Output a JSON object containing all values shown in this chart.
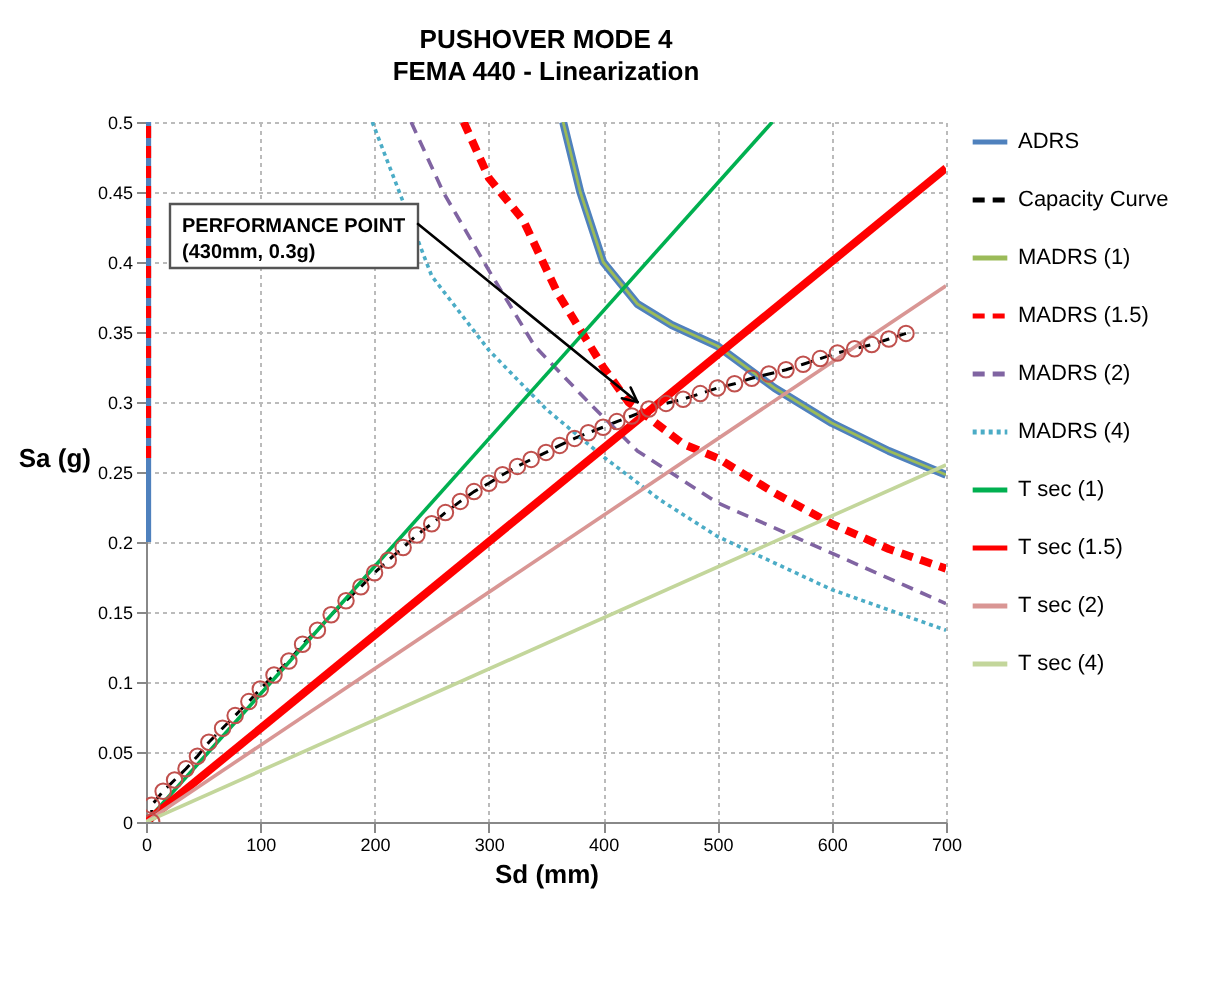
{
  "chart_data": {
    "type": "line",
    "title": "PUSHOVER MODE 4",
    "subtitle": "FEMA 440 - Linearization",
    "xlabel": "Sd (mm)",
    "ylabel": "Sa (g)",
    "xlim": [
      0,
      700
    ],
    "xticks": [
      0,
      100,
      200,
      300,
      400,
      500,
      600,
      700
    ],
    "ylim": [
      0,
      0.5
    ],
    "yticks": [
      0,
      0.05,
      0.1,
      0.15,
      0.2,
      0.25,
      0.3,
      0.35,
      0.4,
      0.45,
      0.5
    ],
    "grid": true,
    "legend": "right",
    "annotations": [
      {
        "text": "PERFORMANCE POINT\n(430mm, 0.3g)",
        "x": 430,
        "y": 0.3
      }
    ],
    "series": [
      {
        "name": "ADRS",
        "color": "#4f81bd",
        "x": [
          1,
          1,
          200,
          365,
          380,
          400,
          430,
          460,
          500,
          550,
          600,
          650,
          700
        ],
        "values": [
          0.2,
          0.5,
          null,
          0.5,
          0.45,
          0.4,
          0.37,
          0.355,
          0.34,
          0.31,
          0.285,
          0.265,
          0.248
        ]
      },
      {
        "name": "Capacity Curve",
        "color": "#000000",
        "marker": "circle",
        "line_style": "dashed",
        "x": [
          5,
          5,
          15,
          25,
          35,
          45,
          55,
          67,
          78,
          90,
          100,
          112,
          125,
          137,
          150,
          162,
          175,
          188,
          200,
          212,
          225,
          237,
          250,
          262,
          275,
          287,
          300,
          312,
          325,
          337,
          350,
          362,
          375,
          387,
          400,
          412,
          425,
          440,
          455,
          470,
          485,
          500,
          515,
          530,
          545,
          560,
          575,
          590,
          605,
          620,
          635,
          650,
          665
        ],
        "values": [
          0,
          0.012,
          0.022,
          0.03,
          0.038,
          0.047,
          0.057,
          0.067,
          0.076,
          0.086,
          0.095,
          0.105,
          0.115,
          0.127,
          0.137,
          0.148,
          0.158,
          0.168,
          0.178,
          0.187,
          0.196,
          0.205,
          0.213,
          0.221,
          0.229,
          0.236,
          0.242,
          0.248,
          0.254,
          0.259,
          0.264,
          0.269,
          0.274,
          0.278,
          0.282,
          0.286,
          0.29,
          0.295,
          0.299,
          0.302,
          0.306,
          0.31,
          0.313,
          0.317,
          0.32,
          0.323,
          0.327,
          0.331,
          0.335,
          0.338,
          0.341,
          0.345,
          0.349
        ]
      },
      {
        "name": "MADRS (1)",
        "color": "#9bbb59",
        "x": [
          365,
          380,
          400,
          430,
          460,
          500,
          550,
          600,
          650,
          700
        ],
        "values": [
          0.5,
          0.45,
          0.4,
          0.37,
          0.355,
          0.34,
          0.31,
          0.285,
          0.265,
          0.248
        ]
      },
      {
        "name": "MADRS (1.5)",
        "color": "#ff0000",
        "line_style": "dashed",
        "x": [
          1,
          1,
          150,
          278,
          300,
          330,
          360,
          400,
          422,
          470,
          500,
          550,
          600,
          650,
          700
        ],
        "values": [
          0.26,
          0.5,
          null,
          0.5,
          0.46,
          0.43,
          0.378,
          0.325,
          0.3,
          0.27,
          0.26,
          0.235,
          0.213,
          0.195,
          0.181
        ]
      },
      {
        "name": "MADRS (2)",
        "color": "#8064a2",
        "line_style": "dashed",
        "x": [
          232,
          260,
          300,
          340,
          387,
          430,
          500,
          600,
          700
        ],
        "values": [
          0.5,
          0.45,
          0.394,
          0.34,
          0.3,
          0.265,
          0.228,
          0.192,
          0.156
        ]
      },
      {
        "name": "MADRS (4)",
        "color": "#4bacc6",
        "line_style": "dotted",
        "x": [
          198,
          250,
          300,
          350,
          400,
          450,
          500,
          600,
          700
        ],
        "values": [
          0.5,
          0.39,
          0.337,
          0.295,
          0.261,
          0.23,
          0.204,
          0.166,
          0.137
        ]
      },
      {
        "name": "T sec (1)",
        "color": "#00b050",
        "x": [
          0,
          548
        ],
        "values": [
          0,
          0.5
        ]
      },
      {
        "name": "T sec (1.5)",
        "color": "#ff0000",
        "x": [
          0,
          700
        ],
        "values": [
          0,
          0.467
        ]
      },
      {
        "name": "T sec (2)",
        "color": "#d99694",
        "x": [
          0,
          700
        ],
        "values": [
          0,
          0.383
        ]
      },
      {
        "name": "T sec (4)",
        "color": "#c3d69b",
        "x": [
          0,
          700
        ],
        "values": [
          0,
          0.255
        ]
      }
    ]
  }
}
